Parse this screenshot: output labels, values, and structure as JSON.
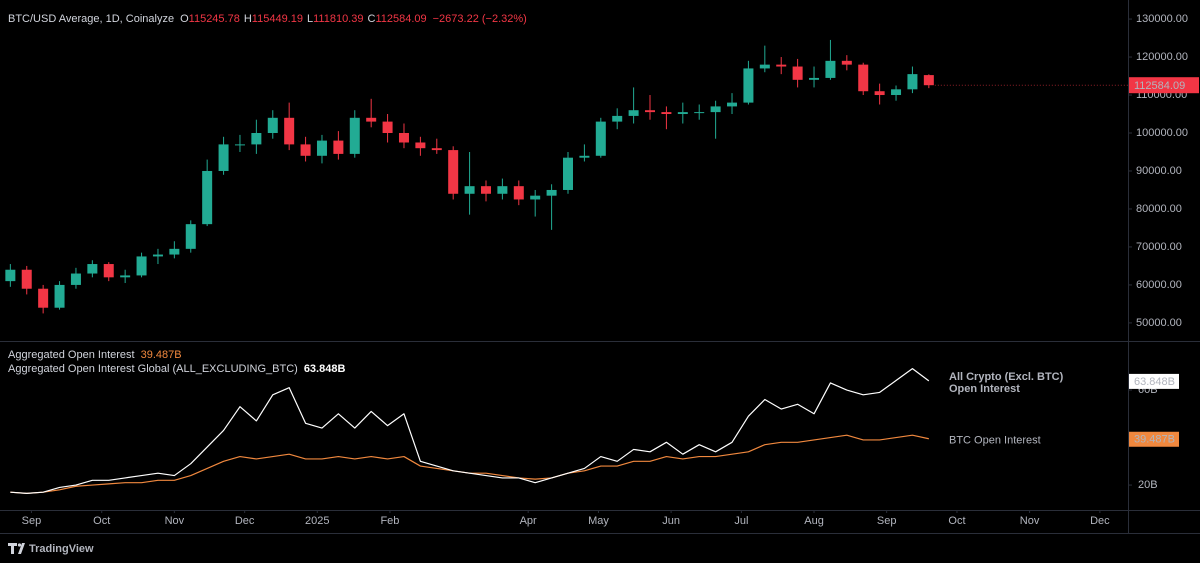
{
  "chart_data": [
    {
      "type": "candlestick",
      "title": "BTC/USD Average, 1D, Coinalyze",
      "ohlc_letters": [
        "O",
        "H",
        "L",
        "C"
      ],
      "change_label": "−2673.22 (−2.32%)",
      "up_color": "#22ab94",
      "down_color": "#f23645",
      "x": [
        -9,
        -2,
        5,
        12,
        19,
        26,
        33,
        40,
        47,
        54,
        61,
        68,
        75,
        82,
        89,
        96,
        103,
        110,
        117,
        124,
        131,
        138,
        145,
        152,
        159,
        166,
        173,
        180,
        187,
        194,
        201,
        208,
        215,
        222,
        229,
        236,
        243,
        250,
        257,
        264,
        271,
        278,
        285,
        292,
        299,
        306,
        313,
        320,
        327,
        334,
        341,
        348,
        355,
        362,
        369,
        376,
        383
      ],
      "open": [
        61000,
        64000,
        59000,
        54000,
        60000,
        63000,
        65500,
        62000,
        62500,
        67500,
        68000,
        69500,
        76000,
        90000,
        97000,
        97000,
        100000,
        104000,
        97000,
        94000,
        98000,
        94500,
        104000,
        103000,
        100000,
        97500,
        96000,
        95500,
        84000,
        86000,
        84000,
        86000,
        82500,
        83500,
        85000,
        93500,
        94000,
        103000,
        104500,
        106000,
        105500,
        105000,
        105500,
        105500,
        107000,
        108000,
        117000,
        118000,
        117500,
        114000,
        114500,
        119000,
        118000,
        111000,
        110000,
        111500,
        115245.78
      ],
      "high": [
        65500,
        65000,
        60000,
        61000,
        64500,
        66500,
        66000,
        64000,
        68500,
        69500,
        71500,
        77000,
        93000,
        99000,
        99500,
        103500,
        106000,
        108000,
        99000,
        99500,
        100500,
        106000,
        109000,
        105000,
        102500,
        99000,
        98500,
        96500,
        95000,
        87500,
        88000,
        87500,
        85000,
        86500,
        95000,
        97000,
        104000,
        106500,
        112000,
        110000,
        107000,
        108000,
        107500,
        108500,
        110500,
        119000,
        123000,
        120000,
        119500,
        117500,
        124500,
        120500,
        118500,
        113000,
        112500,
        117500,
        115449.19
      ],
      "low": [
        59500,
        57500,
        52500,
        53500,
        59000,
        62000,
        61000,
        60500,
        62000,
        65500,
        67000,
        68500,
        75500,
        89000,
        95000,
        94500,
        98500,
        95500,
        92500,
        92000,
        93000,
        93500,
        101500,
        97500,
        96000,
        94000,
        94500,
        82500,
        78500,
        82000,
        82500,
        81000,
        78000,
        74500,
        84000,
        92500,
        93500,
        101000,
        102500,
        103500,
        101000,
        102500,
        103500,
        98500,
        105000,
        107500,
        116000,
        115500,
        112000,
        112000,
        114000,
        116500,
        110000,
        107500,
        108500,
        110500,
        111810.39
      ],
      "close": [
        64000,
        59000,
        54000,
        60000,
        63000,
        65500,
        62000,
        62500,
        67500,
        68000,
        69500,
        76000,
        90000,
        97000,
        97000,
        100000,
        104000,
        97000,
        94000,
        98000,
        94500,
        104000,
        103000,
        100000,
        97500,
        96000,
        95500,
        84000,
        86000,
        84000,
        86000,
        82500,
        83500,
        85000,
        93500,
        94000,
        103000,
        104500,
        106000,
        105500,
        105000,
        105500,
        105500,
        107000,
        108000,
        117000,
        118000,
        117500,
        114000,
        114500,
        119000,
        118000,
        111000,
        110000,
        111500,
        115500,
        112584.09
      ],
      "xlim": [
        -10,
        468
      ],
      "ylim": [
        45500,
        133700
      ],
      "yticks": [
        {
          "value": 50000,
          "label": "50000.00"
        },
        {
          "value": 60000,
          "label": "60000.00"
        },
        {
          "value": 70000,
          "label": "70000.00"
        },
        {
          "value": 80000,
          "label": "80000.00"
        },
        {
          "value": 90000,
          "label": "90000.00"
        },
        {
          "value": 100000,
          "label": "100000.00"
        },
        {
          "value": 110000,
          "label": "110000.00"
        },
        {
          "value": 120000,
          "label": "120000.00"
        },
        {
          "value": 130000,
          "label": "130000.00"
        }
      ]
    },
    {
      "type": "line",
      "x": [
        -9,
        -2,
        5,
        12,
        19,
        26,
        33,
        40,
        47,
        54,
        61,
        68,
        75,
        82,
        89,
        96,
        103,
        110,
        117,
        124,
        131,
        138,
        145,
        152,
        159,
        166,
        173,
        180,
        187,
        194,
        201,
        208,
        215,
        222,
        229,
        236,
        243,
        250,
        257,
        264,
        271,
        278,
        285,
        292,
        299,
        306,
        313,
        320,
        327,
        334,
        341,
        348,
        355,
        362,
        369,
        376,
        383
      ],
      "series": [
        {
          "name": "Aggregated Open Interest",
          "color": "#f0883e",
          "last_value_label": "39.487B",
          "annotation": [
            "BTC Open Interest"
          ],
          "values": [
            17,
            16.5,
            17,
            18,
            19.5,
            20,
            20.5,
            21,
            21,
            22,
            22,
            24,
            27,
            30,
            32,
            31,
            32,
            33,
            31,
            31,
            32,
            31,
            32,
            31,
            32,
            28,
            27,
            26,
            25,
            25,
            24,
            23,
            22.5,
            23,
            25,
            26,
            28,
            28,
            30,
            30,
            32,
            31,
            32,
            32,
            33,
            34,
            37,
            38,
            38,
            39,
            40,
            41,
            39,
            39,
            40,
            41,
            39.487
          ]
        },
        {
          "name": "Aggregated Open Interest Global (ALL_EXCLUDING_BTC)",
          "color": "#ffffff",
          "last_value_label": "63.848B",
          "annotation": [
            "All Crypto (Excl. BTC)",
            "Open Interest"
          ],
          "values": [
            17,
            16.5,
            17,
            19,
            20,
            22,
            22,
            23,
            24,
            25,
            24,
            29,
            36,
            43,
            53,
            47,
            58,
            61,
            46,
            44,
            50,
            44,
            51,
            45,
            50,
            30,
            28,
            26,
            25,
            24,
            23,
            23,
            21,
            23,
            25,
            27,
            32,
            30,
            35,
            34,
            38,
            33,
            37,
            34,
            38,
            49,
            56,
            52,
            54,
            50,
            63,
            60,
            58,
            59,
            64,
            69,
            63.848
          ]
        }
      ],
      "xlim": [
        -10,
        468
      ],
      "xticks": [
        {
          "value": 0,
          "label": "Sep"
        },
        {
          "value": 30,
          "label": "Oct"
        },
        {
          "value": 61,
          "label": "Nov"
        },
        {
          "value": 91,
          "label": "Dec"
        },
        {
          "value": 122,
          "label": "2025"
        },
        {
          "value": 153,
          "label": "Feb"
        },
        {
          "value": 212,
          "label": "Apr"
        },
        {
          "value": 242,
          "label": "May"
        },
        {
          "value": 273,
          "label": "Jun"
        },
        {
          "value": 303,
          "label": "Jul"
        },
        {
          "value": 334,
          "label": "Aug"
        },
        {
          "value": 365,
          "label": "Sep"
        },
        {
          "value": 395,
          "label": "Oct"
        },
        {
          "value": 426,
          "label": "Nov"
        },
        {
          "value": 456,
          "label": "Dec"
        }
      ],
      "ylim": [
        9.5,
        79.8
      ],
      "yticks": [
        {
          "value": 20,
          "label": "20B"
        },
        {
          "value": 60,
          "label": "60B"
        }
      ]
    }
  ],
  "footer": {
    "brand": "TradingView"
  }
}
